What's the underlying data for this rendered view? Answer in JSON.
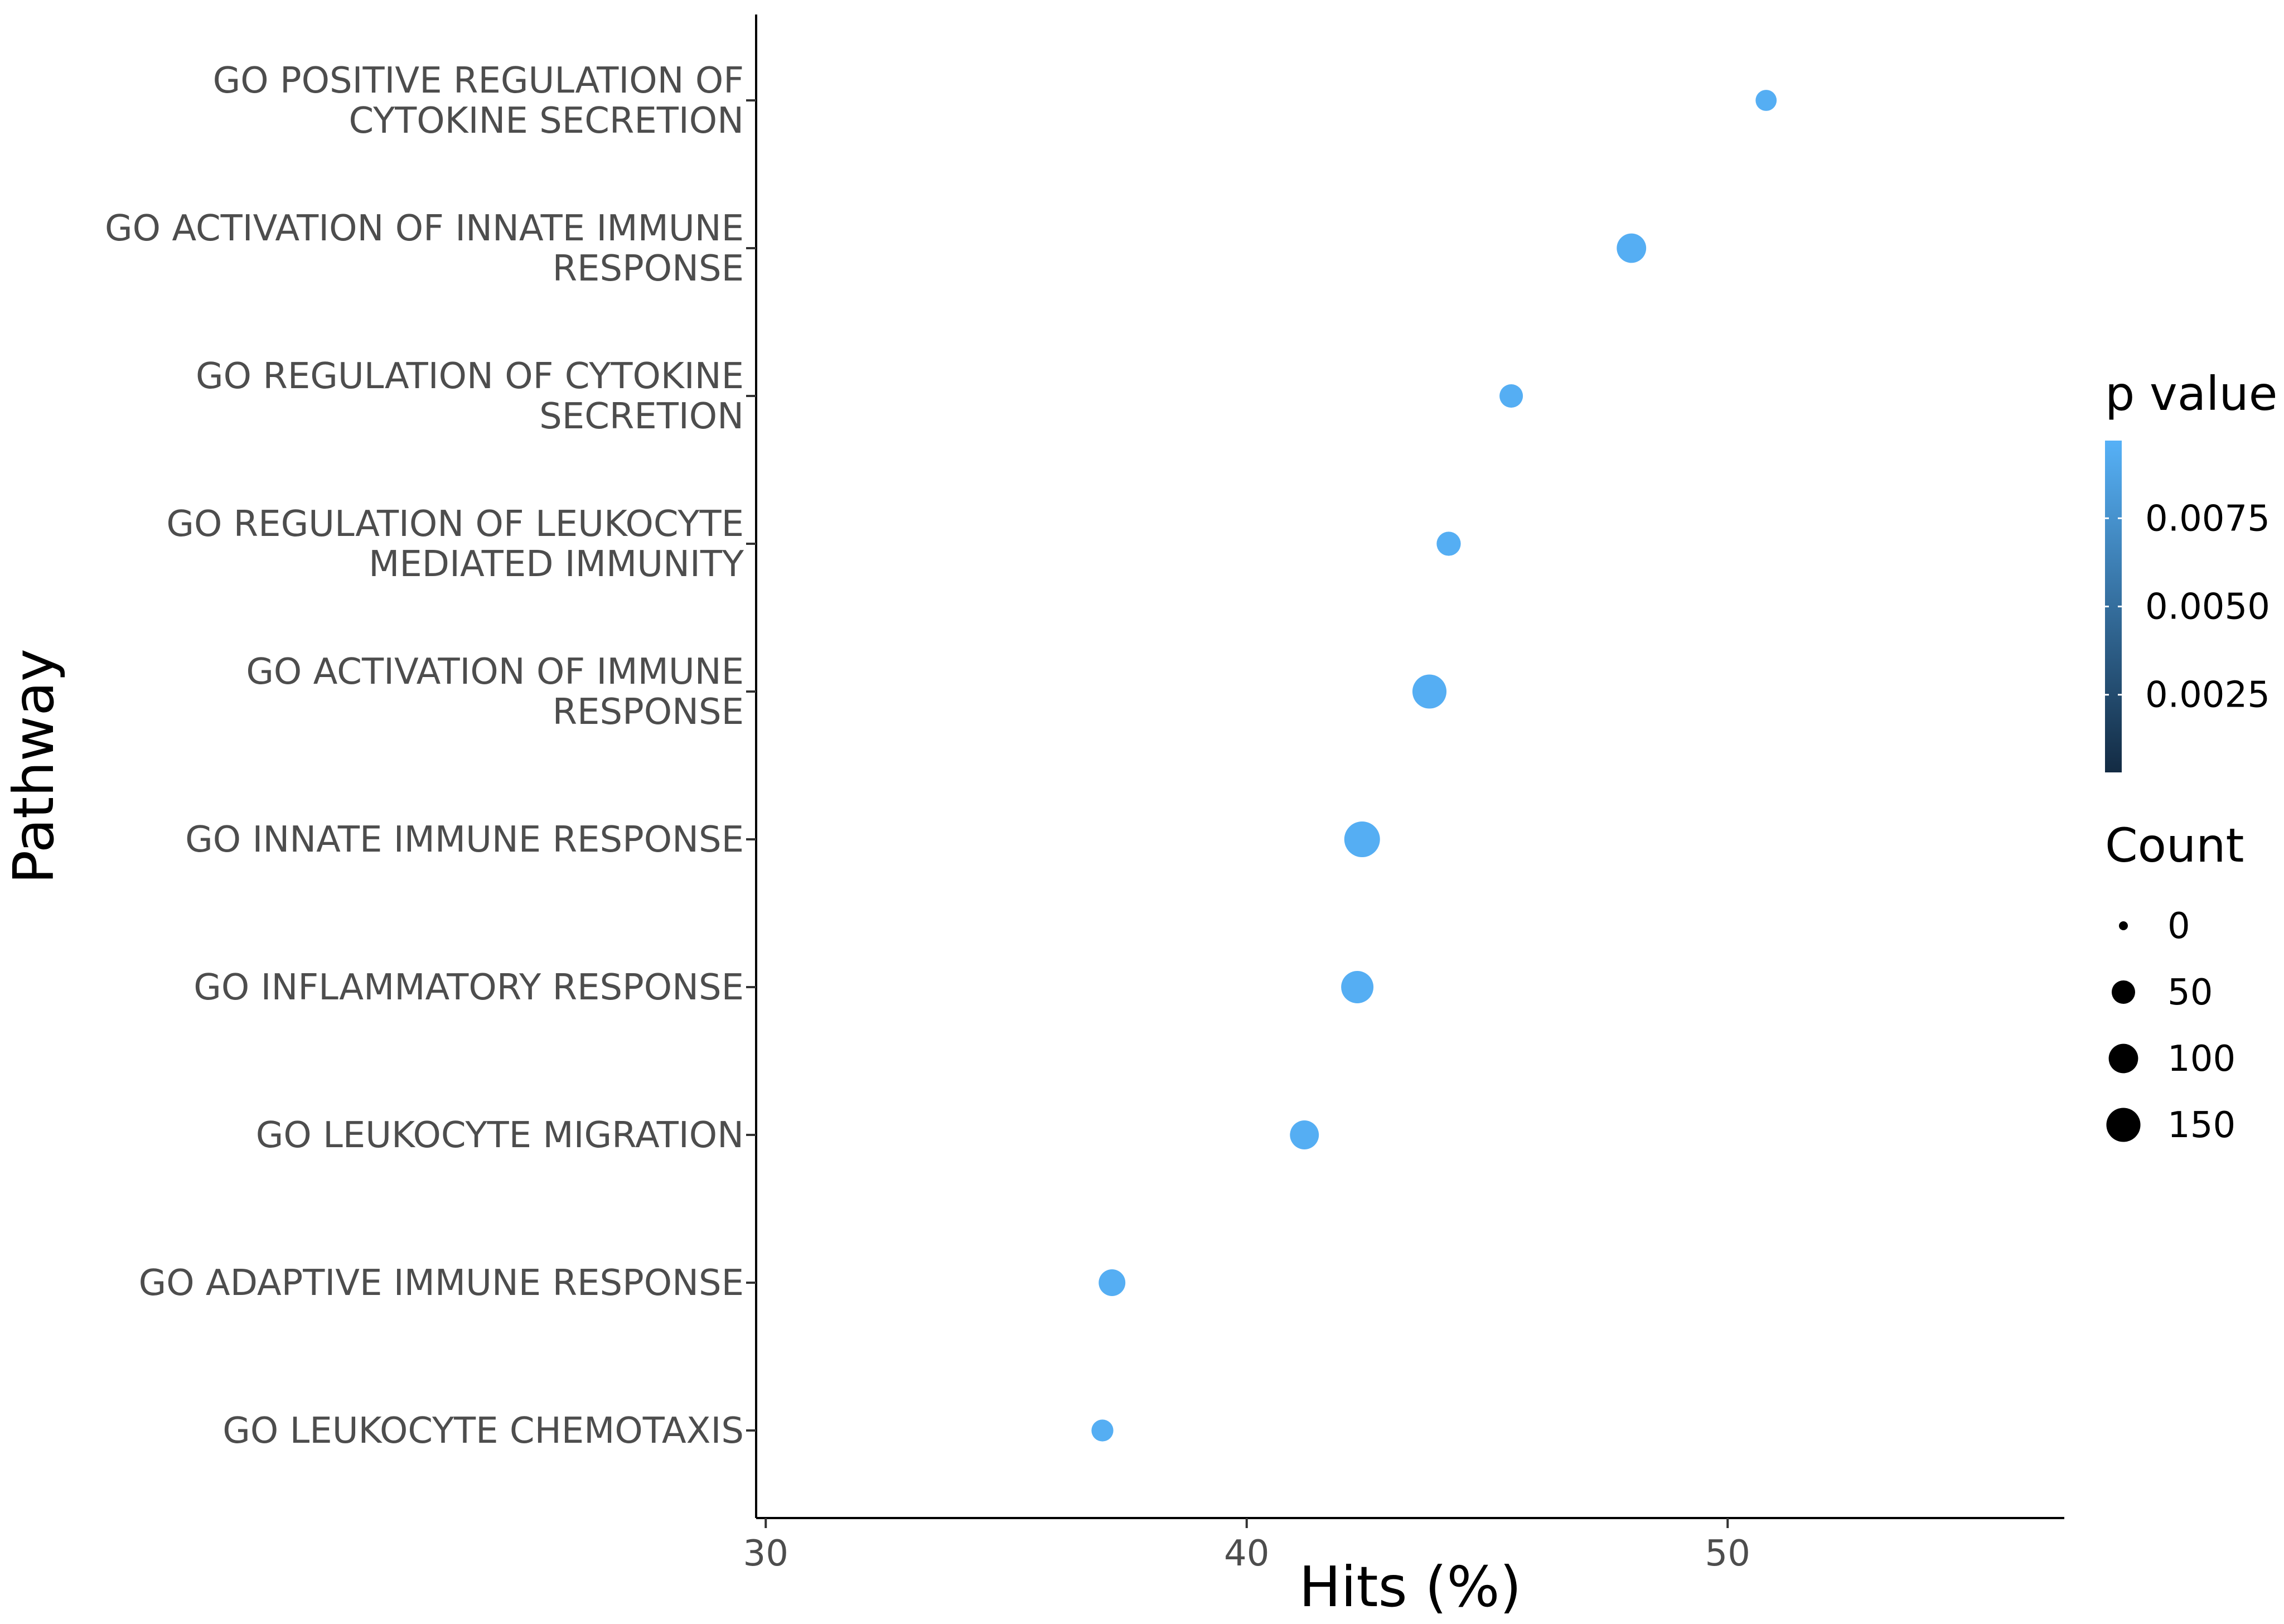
{
  "chart_data": {
    "type": "scatter",
    "xlabel": "Hits (%)",
    "ylabel": "Pathway",
    "xlim": [
      29.8,
      57
    ],
    "xticks": [
      30,
      40,
      50
    ],
    "x_tick_labels": [
      "30",
      "40",
      "50"
    ],
    "grid": false,
    "points": [
      {
        "pathway": [
          "GO POSITIVE REGULATION OF",
          "CYTOKINE SECRETION"
        ],
        "hits": 50.8,
        "count": 35,
        "p_value": 0.0095
      },
      {
        "pathway": [
          "GO ACTIVATION OF INNATE IMMUNE",
          "RESPONSE"
        ],
        "hits": 48.0,
        "count": 100,
        "p_value": 0.0095
      },
      {
        "pathway": [
          "GO REGULATION OF CYTOKINE",
          "SECRETION"
        ],
        "hits": 45.5,
        "count": 50,
        "p_value": 0.0095
      },
      {
        "pathway": [
          "GO REGULATION OF LEUKOCYTE",
          "MEDIATED IMMUNITY"
        ],
        "hits": 44.2,
        "count": 55,
        "p_value": 0.0095
      },
      {
        "pathway": [
          "GO ACTIVATION OF IMMUNE",
          "RESPONSE"
        ],
        "hits": 43.8,
        "count": 150,
        "p_value": 0.0095
      },
      {
        "pathway": [
          "GO INNATE IMMUNE RESPONSE"
        ],
        "hits": 42.4,
        "count": 170,
        "p_value": 0.0095
      },
      {
        "pathway": [
          "GO INFLAMMATORY RESPONSE"
        ],
        "hits": 42.3,
        "count": 130,
        "p_value": 0.0095
      },
      {
        "pathway": [
          "GO LEUKOCYTE MIGRATION"
        ],
        "hits": 41.2,
        "count": 95,
        "p_value": 0.0095
      },
      {
        "pathway": [
          "GO ADAPTIVE IMMUNE RESPONSE"
        ],
        "hits": 37.2,
        "count": 75,
        "p_value": 0.0095
      },
      {
        "pathway": [
          "GO LEUKOCYTE CHEMOTAXIS"
        ],
        "hits": 37.0,
        "count": 40,
        "p_value": 0.0095
      }
    ],
    "legend": {
      "placement": "right",
      "color": {
        "title": "p value",
        "range": [
          0.0003,
          0.0097
        ],
        "breaks": [
          0.0025,
          0.005,
          0.0075
        ],
        "labels": [
          "0.0025",
          "0.0050",
          "0.0075"
        ],
        "low_color": "#132B43",
        "high_color": "#56B1F7"
      },
      "size": {
        "title": "Count",
        "breaks": [
          0,
          50,
          100,
          150
        ],
        "labels": [
          "0",
          "50",
          "100",
          "150"
        ],
        "max": 170
      }
    }
  }
}
